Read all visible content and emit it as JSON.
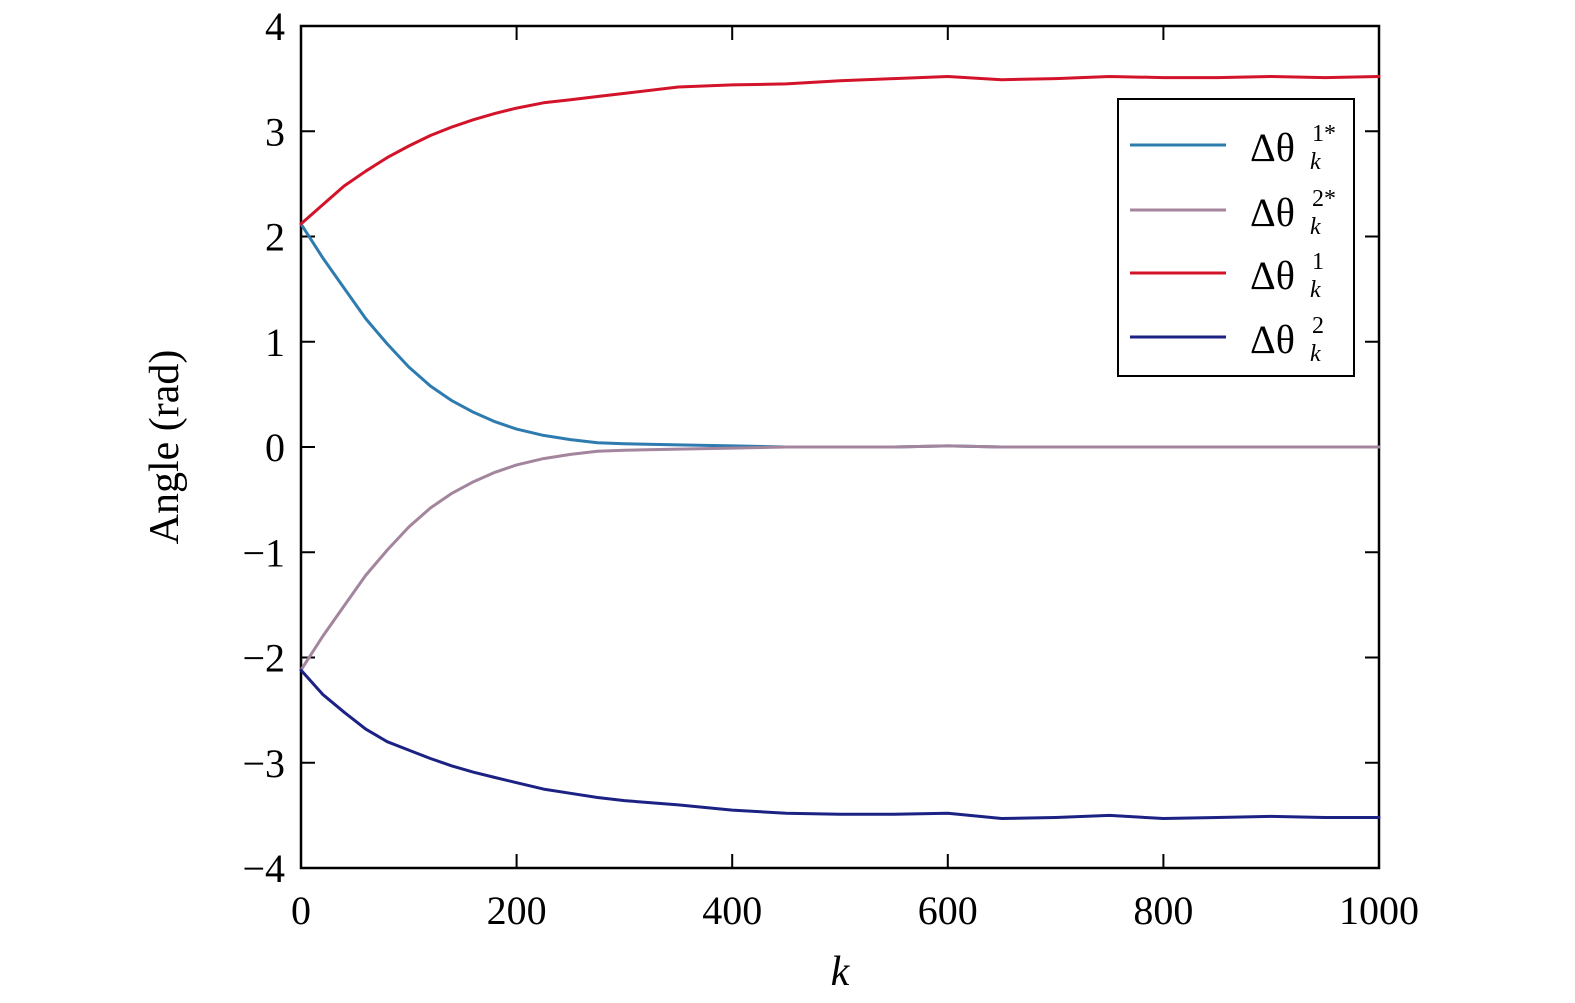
{
  "chart_data": {
    "type": "line",
    "title": "",
    "xlabel": "k",
    "ylabel": "Angle (rad)",
    "xlim": [
      0,
      1000
    ],
    "ylim": [
      -4,
      4
    ],
    "xticks": [
      0,
      200,
      400,
      600,
      800,
      1000
    ],
    "xtick_labels": [
      "0",
      "200",
      "400",
      "600",
      "800",
      "1000"
    ],
    "yticks": [
      4,
      3,
      2,
      1,
      0,
      -1,
      -2,
      -3,
      -4
    ],
    "ytick_labels": [
      "4",
      "3",
      "2",
      "1",
      "0",
      "−1",
      "−2",
      "−3",
      "−4"
    ],
    "grid": false,
    "legend_position": "top-right",
    "x": [
      0,
      20,
      40,
      60,
      80,
      100,
      120,
      140,
      160,
      180,
      200,
      225,
      250,
      275,
      300,
      350,
      400,
      450,
      500,
      550,
      600,
      650,
      700,
      750,
      800,
      850,
      900,
      950,
      1000
    ],
    "series": [
      {
        "name_main": "Δθ",
        "name_sub": "k",
        "name_sup": "1*",
        "color": "#2e7bb0",
        "values": [
          2.12,
          1.8,
          1.51,
          1.22,
          0.98,
          0.76,
          0.58,
          0.44,
          0.33,
          0.24,
          0.17,
          0.11,
          0.07,
          0.04,
          0.03,
          0.02,
          0.01,
          0.0,
          0.0,
          0.0,
          0.01,
          0.0,
          0.0,
          0.0,
          0.0,
          0.0,
          0.0,
          0.0,
          0.0
        ]
      },
      {
        "name_main": "Δθ",
        "name_sub": "k",
        "name_sup": "2*",
        "color": "#a3859d",
        "values": [
          -2.12,
          -1.8,
          -1.51,
          -1.22,
          -0.98,
          -0.76,
          -0.58,
          -0.44,
          -0.33,
          -0.24,
          -0.17,
          -0.11,
          -0.07,
          -0.04,
          -0.03,
          -0.02,
          -0.01,
          0.0,
          0.0,
          0.0,
          0.01,
          0.0,
          0.0,
          0.0,
          0.0,
          0.0,
          0.0,
          0.0,
          0.0
        ]
      },
      {
        "name_main": "Δθ",
        "name_sub": "k",
        "name_sup": "1",
        "color": "#d3132a",
        "values": [
          2.12,
          2.3,
          2.48,
          2.62,
          2.75,
          2.86,
          2.96,
          3.04,
          3.11,
          3.17,
          3.22,
          3.27,
          3.3,
          3.33,
          3.36,
          3.42,
          3.44,
          3.45,
          3.48,
          3.5,
          3.52,
          3.49,
          3.5,
          3.52,
          3.51,
          3.51,
          3.52,
          3.51,
          3.52
        ]
      },
      {
        "name_main": "Δθ",
        "name_sub": "k",
        "name_sup": "2",
        "color": "#1c2284",
        "values": [
          -2.12,
          -2.35,
          -2.52,
          -2.68,
          -2.8,
          -2.88,
          -2.96,
          -3.03,
          -3.09,
          -3.14,
          -3.19,
          -3.25,
          -3.29,
          -3.33,
          -3.36,
          -3.4,
          -3.45,
          -3.48,
          -3.49,
          -3.49,
          -3.48,
          -3.53,
          -3.52,
          -3.5,
          -3.53,
          -3.52,
          -3.51,
          -3.52,
          -3.52
        ]
      }
    ]
  }
}
